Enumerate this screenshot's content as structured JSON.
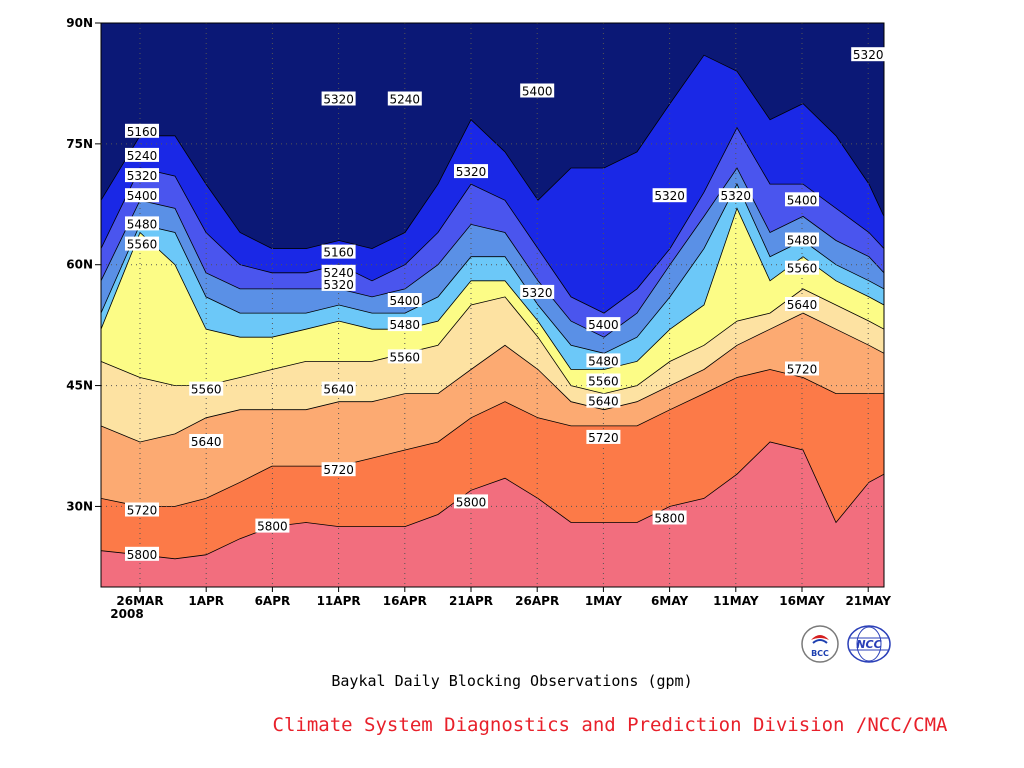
{
  "chart_data": {
    "type": "heatmap",
    "title": "Baykal Daily Blocking Observations (gpm)",
    "xlabel": "",
    "ylabel": "",
    "x_tick_labels": [
      "26MAR",
      "1APR",
      "6APR",
      "11APR",
      "16APR",
      "21APR",
      "26APR",
      "1MAY",
      "6MAY",
      "11MAY",
      "16MAY",
      "21MAY"
    ],
    "x_tick_sublabel": "2008",
    "y_tick_labels": [
      "30N",
      "45N",
      "60N",
      "75N",
      "90N"
    ],
    "ylim": [
      20,
      90
    ],
    "contour_levels": [
      5160,
      5240,
      5320,
      5400,
      5480,
      5560,
      5640,
      5720,
      5800
    ],
    "fill_colors": [
      "#0b1876",
      "#1a28e6",
      "#4a55ee",
      "#5a90e6",
      "#6cc8f8",
      "#fcfc86",
      "#fde2a2",
      "#fcaa72",
      "#fc7a48",
      "#f26e7e"
    ],
    "contour_labels": [
      {
        "v": "5160",
        "d": "26MAR",
        "lat": 76.5
      },
      {
        "v": "5240",
        "d": "26MAR",
        "lat": 73.5
      },
      {
        "v": "5320",
        "d": "26MAR",
        "lat": 71.0
      },
      {
        "v": "5400",
        "d": "26MAR",
        "lat": 68.5
      },
      {
        "v": "5480",
        "d": "26MAR",
        "lat": 65.0
      },
      {
        "v": "5560",
        "d": "26MAR",
        "lat": 62.5
      },
      {
        "v": "5560",
        "d": "1APR",
        "lat": 44.5
      },
      {
        "v": "5640",
        "d": "1APR",
        "lat": 38.0
      },
      {
        "v": "5720",
        "d": "26MAR",
        "lat": 29.5
      },
      {
        "v": "5800",
        "d": "26MAR",
        "lat": 24.0
      },
      {
        "v": "5320",
        "d": "11APR",
        "lat": 80.5
      },
      {
        "v": "5240",
        "d": "16APR",
        "lat": 80.5
      },
      {
        "v": "5320",
        "d": "21APR",
        "lat": 71.5
      },
      {
        "v": "5160",
        "d": "11APR",
        "lat": 61.5
      },
      {
        "v": "5240",
        "d": "11APR",
        "lat": 59.0
      },
      {
        "v": "5320",
        "d": "11APR",
        "lat": 57.5
      },
      {
        "v": "5400",
        "d": "16APR",
        "lat": 55.5
      },
      {
        "v": "5480",
        "d": "16APR",
        "lat": 52.5
      },
      {
        "v": "5560",
        "d": "16APR",
        "lat": 48.5
      },
      {
        "v": "5640",
        "d": "11APR",
        "lat": 44.5
      },
      {
        "v": "5720",
        "d": "11APR",
        "lat": 34.5
      },
      {
        "v": "5800",
        "d": "6APR",
        "lat": 27.5
      },
      {
        "v": "5800",
        "d": "21APR",
        "lat": 30.5
      },
      {
        "v": "5400",
        "d": "26APR",
        "lat": 81.5
      },
      {
        "v": "5320",
        "d": "26APR",
        "lat": 56.5
      },
      {
        "v": "5400",
        "d": "1MAY",
        "lat": 52.5
      },
      {
        "v": "5480",
        "d": "1MAY",
        "lat": 48.0
      },
      {
        "v": "5560",
        "d": "1MAY",
        "lat": 45.5
      },
      {
        "v": "5640",
        "d": "1MAY",
        "lat": 43.0
      },
      {
        "v": "5720",
        "d": "1MAY",
        "lat": 38.5
      },
      {
        "v": "5320",
        "d": "6MAY",
        "lat": 68.5
      },
      {
        "v": "5800",
        "d": "6MAY",
        "lat": 28.5
      },
      {
        "v": "5320",
        "d": "11MAY",
        "lat": 68.5
      },
      {
        "v": "5400",
        "d": "16MAY",
        "lat": 68.0
      },
      {
        "v": "5480",
        "d": "16MAY",
        "lat": 63.0
      },
      {
        "v": "5560",
        "d": "16MAY",
        "lat": 59.5
      },
      {
        "v": "5640",
        "d": "16MAY",
        "lat": 55.0
      },
      {
        "v": "5720",
        "d": "16MAY",
        "lat": 47.0
      },
      {
        "v": "5320",
        "d": "21MAY",
        "lat": 86.0
      }
    ],
    "grid": true
  },
  "caption": "Baykal Daily Blocking Observations (gpm)",
  "division": "Climate System Diagnostics and Prediction Division /NCC/CMA",
  "logos": [
    {
      "name": "bcc-logo",
      "text": "BCC"
    },
    {
      "name": "ncc-logo",
      "text": "NCC"
    }
  ]
}
